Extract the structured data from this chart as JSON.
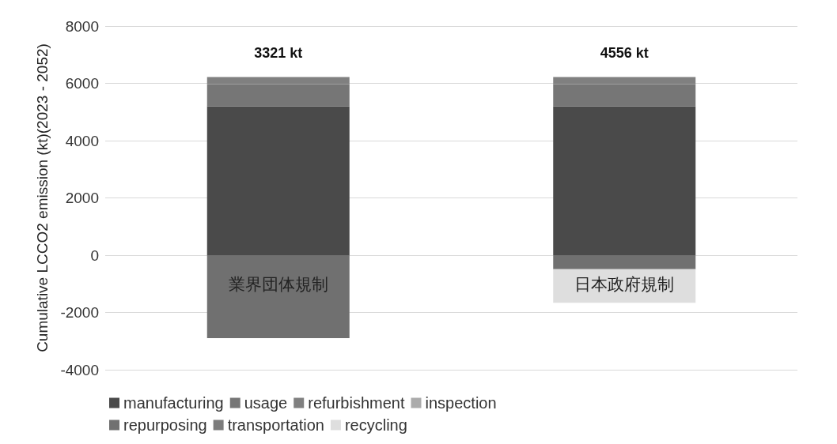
{
  "chart_data": {
    "type": "bar",
    "stacked": true,
    "ylabel": "Cumulative LCCO2 emission (kt)(2023 - 2052)",
    "categories": [
      "業界団体規制",
      "日本政府規制"
    ],
    "series": [
      {
        "name": "manufacturing",
        "color": "#4a4a4a",
        "values": [
          5190,
          5190
        ]
      },
      {
        "name": "usage",
        "color": "#767676",
        "values": [
          780,
          780
        ]
      },
      {
        "name": "refurbishment",
        "color": "#808080",
        "values": [
          250,
          250
        ]
      },
      {
        "name": "inspection",
        "color": "#ababab",
        "values": [
          null,
          null
        ]
      },
      {
        "name": "repurposing",
        "color": "#707070",
        "values": [
          -2899,
          -490
        ]
      },
      {
        "name": "transportation",
        "color": "#7c7c7c",
        "values": [
          null,
          null
        ]
      },
      {
        "name": "recycling",
        "color": "#dedede",
        "values": [
          null,
          -1174
        ]
      }
    ],
    "totals": [
      "3321 kt",
      "4556 kt"
    ],
    "ylim": [
      -4000,
      8000
    ],
    "yticks": [
      -4000,
      -2000,
      0,
      2000,
      4000,
      6000,
      8000
    ],
    "grid": "y",
    "legend": "bottom"
  }
}
